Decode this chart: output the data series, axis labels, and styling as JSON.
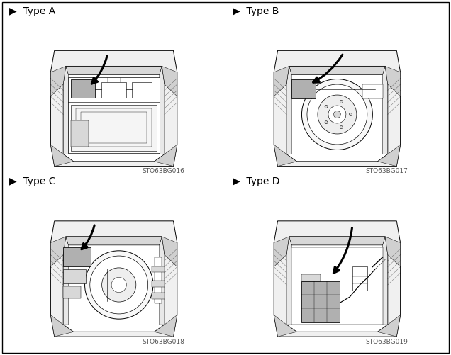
{
  "panels": [
    {
      "label": "Type A",
      "code": "STO63BG016",
      "row": 0,
      "col": 0
    },
    {
      "label": "Type B",
      "code": "STO63BG017",
      "row": 0,
      "col": 1
    },
    {
      "label": "Type C",
      "code": "STO63BG018",
      "row": 1,
      "col": 0
    },
    {
      "label": "Type D",
      "code": "STO63BG019",
      "row": 1,
      "col": 1
    }
  ],
  "bg_color": "#ffffff",
  "lc": "#000000",
  "gray": "#b0b0b0",
  "lgray": "#d8d8d8",
  "dgray": "#888888",
  "label_fs": 10,
  "code_fs": 6.5,
  "border_lw": 0.8,
  "trunk_lw": 0.7,
  "arrow_lw": 2.2
}
